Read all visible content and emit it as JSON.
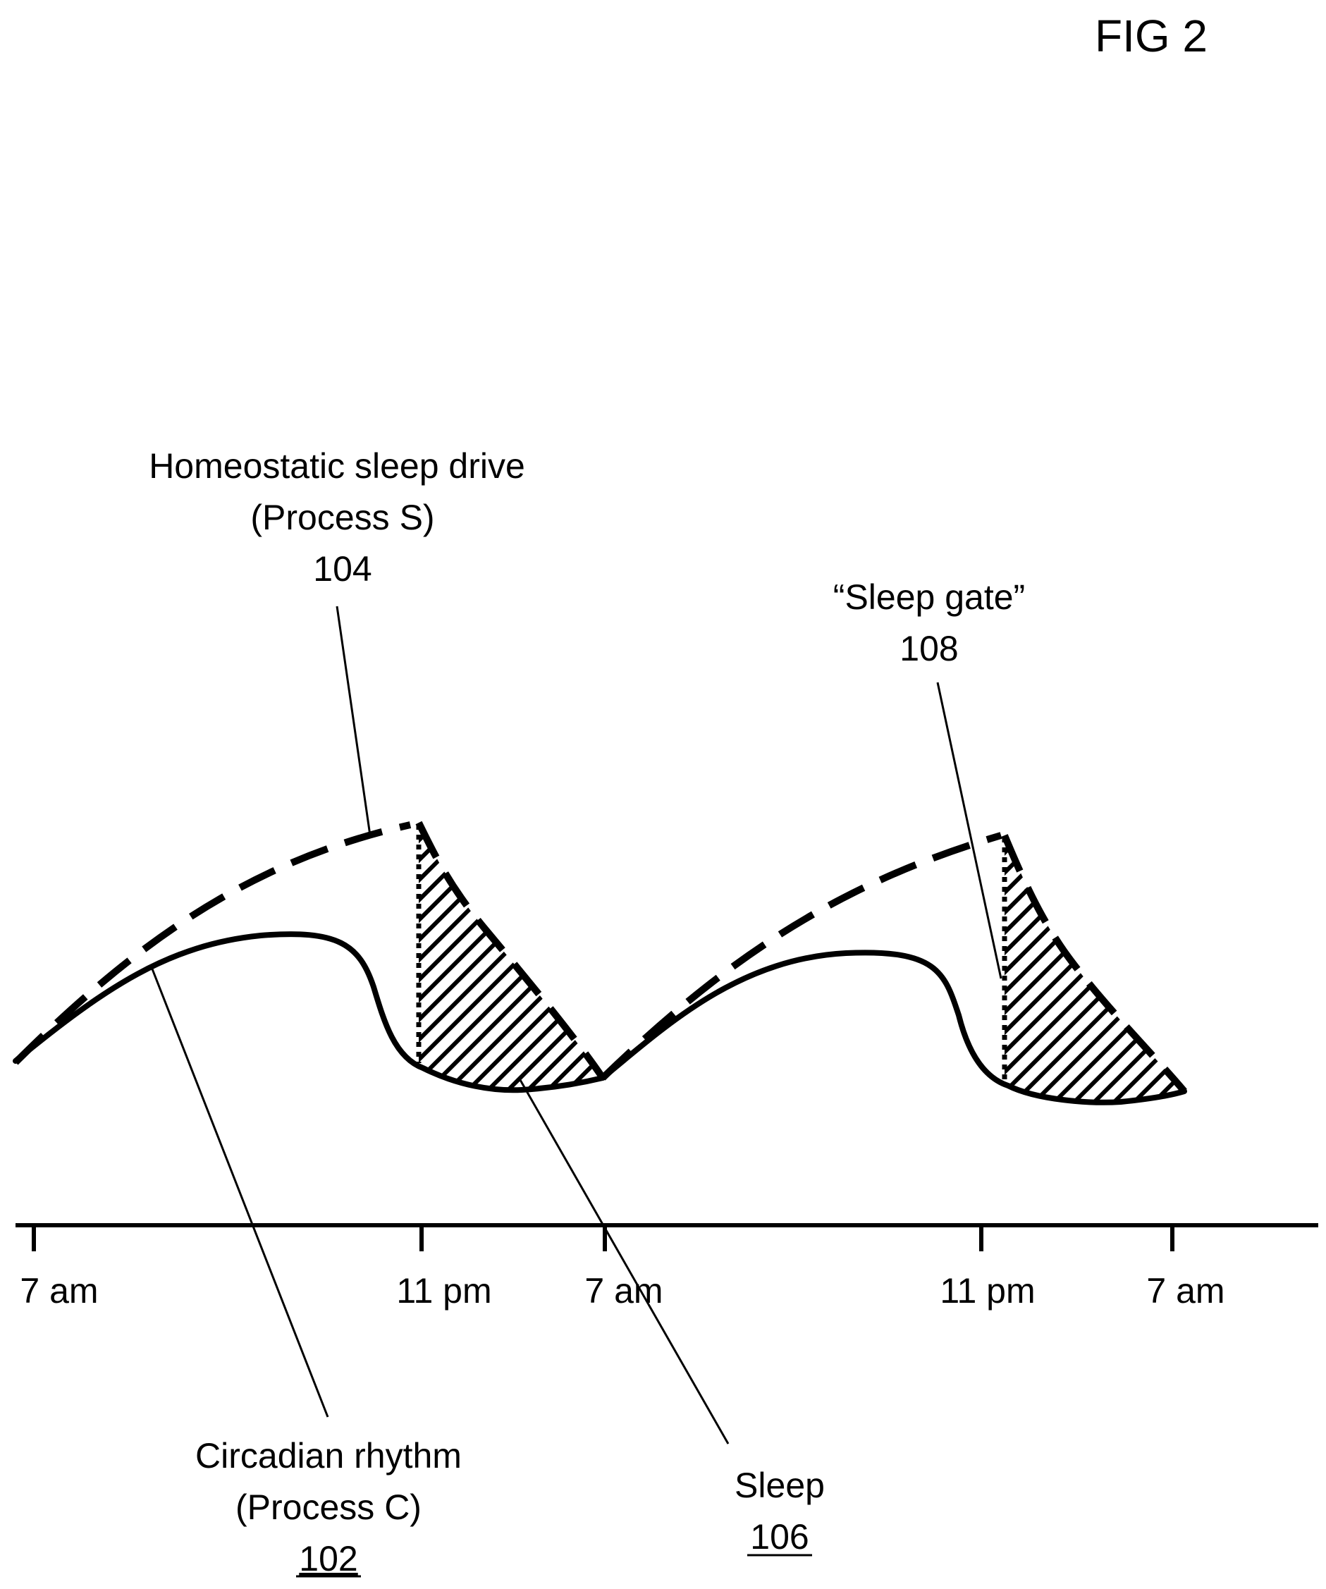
{
  "figure": {
    "title": "FIG 2"
  },
  "axis": {
    "ticks": [
      "7 am",
      "11 pm",
      "7 am",
      "11 pm",
      "7 am"
    ]
  },
  "labels": {
    "process_s": {
      "line1": "Homeostatic sleep drive",
      "line2": "(Process S)",
      "ref": "104"
    },
    "sleep_gate": {
      "line1": "“Sleep gate”",
      "ref": "108"
    },
    "process_c": {
      "line1": "Circadian rhythm",
      "line2": "(Process C)",
      "ref": "102"
    },
    "sleep": {
      "line1": "Sleep",
      "ref": "106"
    }
  },
  "style": {
    "line_color": "#000000",
    "background": "#ffffff"
  }
}
